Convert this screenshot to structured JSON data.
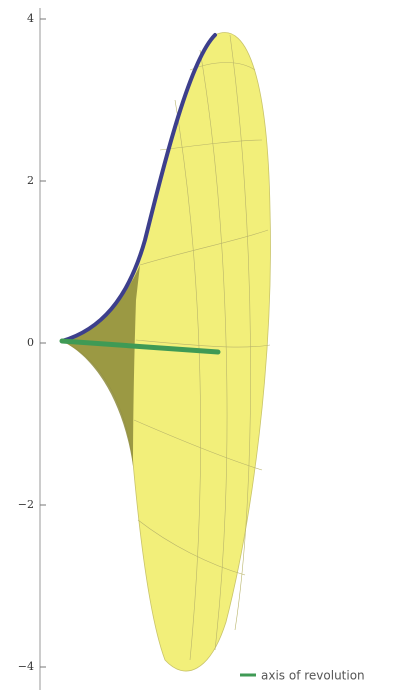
{
  "chart_data": {
    "type": "surface-of-revolution",
    "ylim": [
      -4.3,
      4.2
    ],
    "yticks": [
      4,
      2,
      0,
      {
        "value": -2,
        "label": "−2"
      },
      {
        "value": -4,
        "label": "−4"
      }
    ],
    "series": [
      {
        "name": "axis of revolution",
        "color": "#3f9a55"
      }
    ],
    "surface_color": "#f2ef7a",
    "curve_color": "#3d3f8c"
  }
}
